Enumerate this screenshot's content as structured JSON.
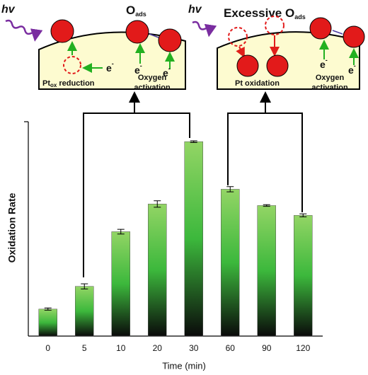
{
  "chart_data": {
    "type": "bar",
    "x_label": "Time (min)",
    "y_label": "Oxidation Rate",
    "categories": [
      "0",
      "5",
      "10",
      "20",
      "30",
      "60",
      "90",
      "120"
    ],
    "values": [
      12.6,
      23.2,
      48.7,
      61.6,
      90.7,
      68.5,
      60.9,
      56.3
    ],
    "errors": [
      0.5,
      1.2,
      1.1,
      1.5,
      0.4,
      1.2,
      0.4,
      0.7
    ],
    "ylim": [
      0,
      100
    ],
    "gradient": [
      "#93d565",
      "#3cb83c",
      "#0a0a0a"
    ],
    "panels": [
      {
        "hv": "hv",
        "oxygen": {
          "main": "O",
          "sub": "ads"
        },
        "electron": {
          "main": "e",
          "sup": "-"
        },
        "left_caption": {
          "main": "Pt",
          "sub": "ox",
          "rest": " reduction"
        },
        "right_caption": [
          "Oxygen",
          "activation"
        ]
      },
      {
        "hv": "hv",
        "oxygen": {
          "main": "Excessive O",
          "sub": "ads"
        },
        "electron": {
          "main": "e",
          "sup": "-"
        },
        "left_caption": {
          "main": "Pt oxidation"
        },
        "right_caption": [
          "Oxygen",
          "activation"
        ]
      }
    ]
  }
}
